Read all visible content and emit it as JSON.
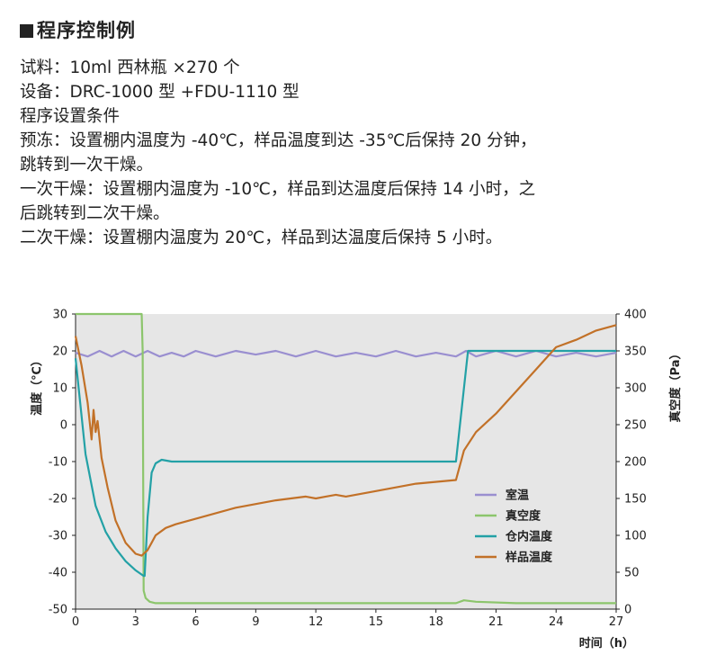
{
  "heading": "程序控制例",
  "lines": [
    "试料：10ml 西林瓶 ×270 个",
    "设备：DRC-1000 型 +FDU-1110 型",
    "程序设置条件",
    "预冻：设置棚内温度为 -40℃，样品温度到达 -35℃后保持 20 分钟，",
    "跳转到一次干燥。",
    "一次干燥：设置棚内温度为 -10℃，样品到达温度后保持 14 小时，之",
    "后跳转到二次干燥。",
    "二次干燥：设置棚内温度为 20℃，样品到达温度后保持 5 小时。"
  ],
  "chart_data": {
    "type": "line",
    "xlabel": "时间（h）",
    "ylabel_left": "温度（℃）",
    "ylabel_right": "真空度（Pa）",
    "xlim": [
      0,
      27
    ],
    "ylim_left": [
      -50,
      30
    ],
    "ylim_right": [
      0,
      400
    ],
    "x_ticks": [
      0,
      3,
      6,
      9,
      12,
      15,
      18,
      21,
      24,
      27
    ],
    "y_ticks_left": [
      30,
      20,
      10,
      0,
      -10,
      -20,
      -30,
      -40,
      -50
    ],
    "y_ticks_right": [
      400,
      350,
      300,
      250,
      200,
      150,
      100,
      50,
      0
    ],
    "background": "#e6e6e6",
    "grid": false,
    "legend_position": "lower-right",
    "series": [
      {
        "name": "室温",
        "axis": "left",
        "color": "#9a8fd0",
        "x": [
          0,
          0.6,
          1.2,
          1.8,
          2.4,
          3.0,
          3.6,
          4.2,
          4.8,
          5.4,
          6,
          7,
          8,
          9,
          10,
          11,
          12,
          13,
          14,
          15,
          16,
          17,
          18,
          19,
          19.5,
          20,
          21,
          22,
          23,
          24,
          25,
          26,
          27
        ],
        "y": [
          19.5,
          18.5,
          20,
          18.5,
          20,
          18.5,
          20,
          18.5,
          19.5,
          18.5,
          20,
          18.5,
          20,
          19,
          20,
          18.5,
          20,
          18.5,
          19.5,
          18.5,
          20,
          18.5,
          19.5,
          18.5,
          20,
          18.5,
          20,
          18.5,
          20,
          18.5,
          19.5,
          18.5,
          19.5
        ]
      },
      {
        "name": "真空度",
        "axis": "right",
        "color": "#8cc56c",
        "x": [
          0,
          3.3,
          3.35,
          3.4,
          3.5,
          3.7,
          4.0,
          5,
          10,
          15,
          19,
          19.4,
          20,
          22,
          24,
          27
        ],
        "y": [
          400,
          400,
          350,
          25,
          15,
          10,
          8,
          8,
          8,
          8,
          8,
          12,
          10,
          8,
          8,
          8
        ]
      },
      {
        "name": "仓内温度",
        "axis": "left",
        "color": "#23a1a6",
        "x": [
          0,
          0.5,
          1,
          1.5,
          2,
          2.5,
          3,
          3.4,
          3.45,
          3.6,
          3.8,
          4.0,
          4.3,
          4.8,
          5,
          10,
          15,
          19,
          19.3,
          19.6,
          20,
          22,
          24,
          27
        ],
        "y": [
          18,
          -8,
          -22,
          -29,
          -33.5,
          -37,
          -39.5,
          -41,
          -41,
          -25,
          -13,
          -10.5,
          -9.5,
          -10,
          -10,
          -10,
          -10,
          -10,
          5,
          20,
          20,
          20,
          20,
          20
        ]
      },
      {
        "name": "样品温度",
        "axis": "left",
        "color": "#c27128",
        "x": [
          0,
          0.3,
          0.6,
          0.8,
          0.9,
          1.0,
          1.1,
          1.3,
          1.6,
          2,
          2.5,
          3.0,
          3.3,
          3.6,
          3.8,
          4.0,
          4.5,
          5,
          6,
          8,
          10,
          11.5,
          12,
          12.5,
          13,
          13.5,
          15,
          17,
          19,
          19.4,
          20,
          21,
          22,
          23,
          24,
          25,
          26,
          27
        ],
        "y": [
          24,
          16,
          6,
          -4,
          4,
          -2,
          1,
          -9,
          -17,
          -26,
          -32,
          -35,
          -35.5,
          -34,
          -32,
          -30,
          -28,
          -27,
          -25.5,
          -22.5,
          -20.5,
          -19.5,
          -20,
          -19.5,
          -19,
          -19.5,
          -18,
          -16,
          -15,
          -7,
          -2,
          3,
          9,
          15,
          21,
          23,
          25.5,
          27
        ]
      }
    ]
  }
}
